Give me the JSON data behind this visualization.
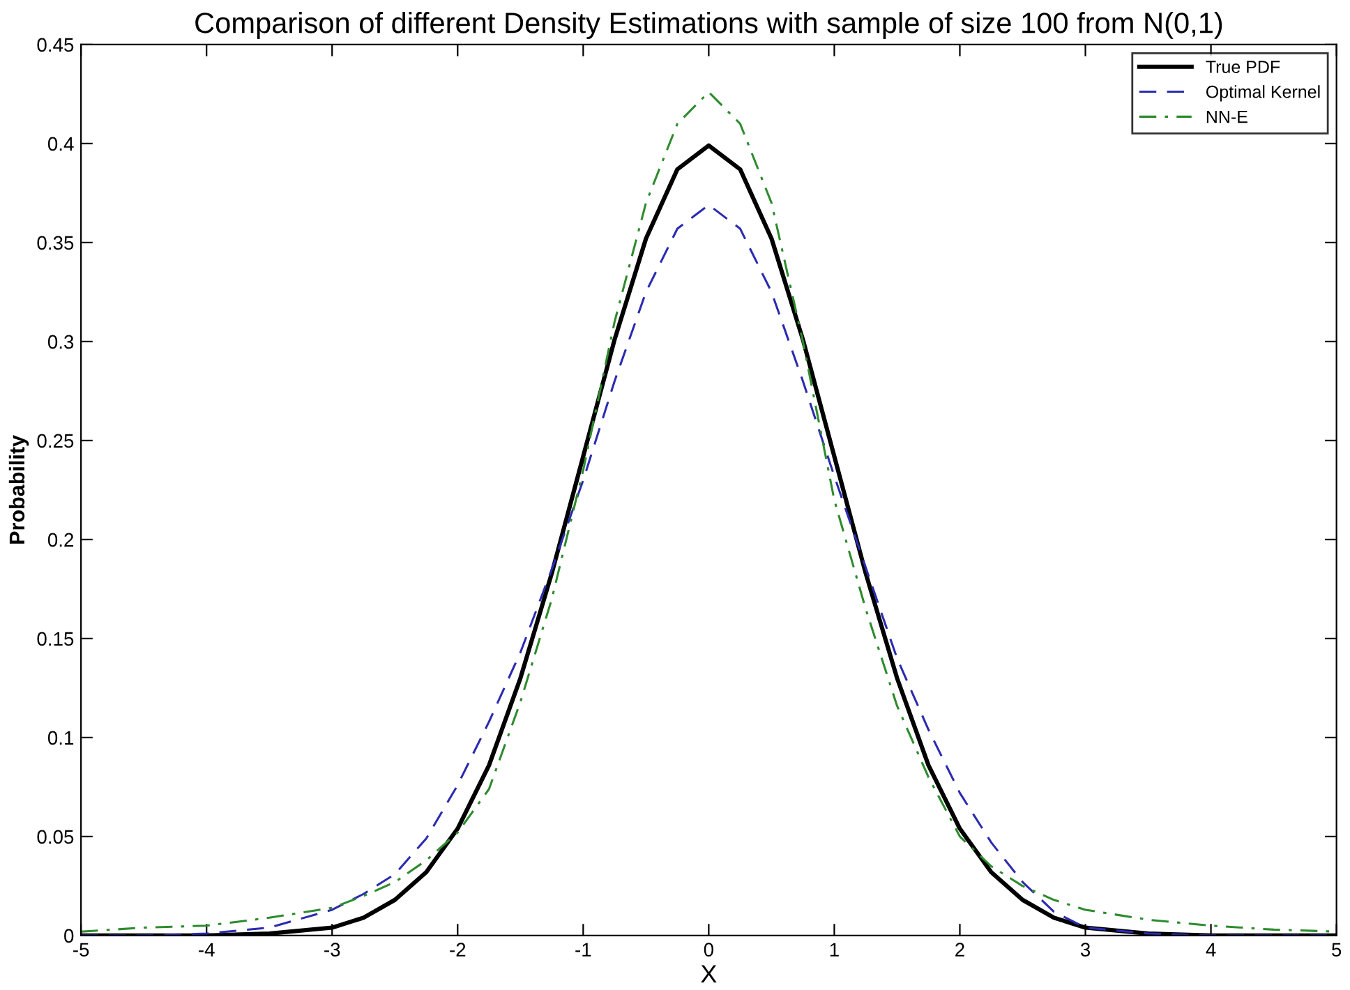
{
  "chart_data": {
    "type": "line",
    "title": "Comparison of different Density Estimations with sample of size 100 from N(0,1)",
    "xlabel": "X",
    "ylabel": "Probability",
    "x": [
      -5,
      -4.5,
      -4,
      -3.5,
      -3,
      -2.75,
      -2.5,
      -2.25,
      -2,
      -1.75,
      -1.5,
      -1.25,
      -1,
      -0.75,
      -0.5,
      -0.25,
      0,
      0.25,
      0.5,
      0.75,
      1,
      1.25,
      1.5,
      1.75,
      2,
      2.25,
      2.5,
      2.75,
      3,
      3.5,
      4,
      4.5,
      5
    ],
    "series": [
      {
        "name": "True PDF",
        "color": "#000000",
        "line_style": "solid",
        "values": [
          0,
          0,
          0,
          0.001,
          0.004,
          0.009,
          0.018,
          0.032,
          0.054,
          0.086,
          0.13,
          0.183,
          0.242,
          0.301,
          0.352,
          0.387,
          0.399,
          0.387,
          0.352,
          0.301,
          0.242,
          0.183,
          0.13,
          0.086,
          0.054,
          0.032,
          0.018,
          0.009,
          0.004,
          0.001,
          0,
          0,
          0
        ]
      },
      {
        "name": "Optimal Kernel",
        "color": "#2b2bb0",
        "line_style": "dashed",
        "values": [
          0,
          0,
          0.001,
          0.004,
          0.013,
          0.021,
          0.031,
          0.049,
          0.076,
          0.108,
          0.143,
          0.185,
          0.23,
          0.28,
          0.325,
          0.357,
          0.369,
          0.357,
          0.325,
          0.28,
          0.232,
          0.186,
          0.14,
          0.104,
          0.072,
          0.047,
          0.027,
          0.012,
          0.004,
          0.001,
          0,
          0,
          0
        ]
      },
      {
        "name": "NN-E",
        "color": "#2e8b2e",
        "line_style": "dashdot",
        "values": [
          0.002,
          0.004,
          0.005,
          0.009,
          0.014,
          0.02,
          0.027,
          0.038,
          0.052,
          0.074,
          0.118,
          0.17,
          0.235,
          0.31,
          0.37,
          0.41,
          0.426,
          0.41,
          0.37,
          0.3,
          0.22,
          0.165,
          0.116,
          0.08,
          0.05,
          0.035,
          0.025,
          0.018,
          0.013,
          0.008,
          0.005,
          0.003,
          0.002
        ]
      }
    ],
    "xlim": [
      -5,
      5
    ],
    "ylim": [
      0,
      0.45
    ],
    "xticks": [
      -5,
      -4,
      -3,
      -2,
      -1,
      0,
      1,
      2,
      3,
      4,
      5
    ],
    "yticks": [
      0,
      0.05,
      0.1,
      0.15,
      0.2,
      0.25,
      0.3,
      0.35,
      0.4,
      0.45
    ],
    "grid": false,
    "legend": "top right",
    "marker": "none"
  }
}
